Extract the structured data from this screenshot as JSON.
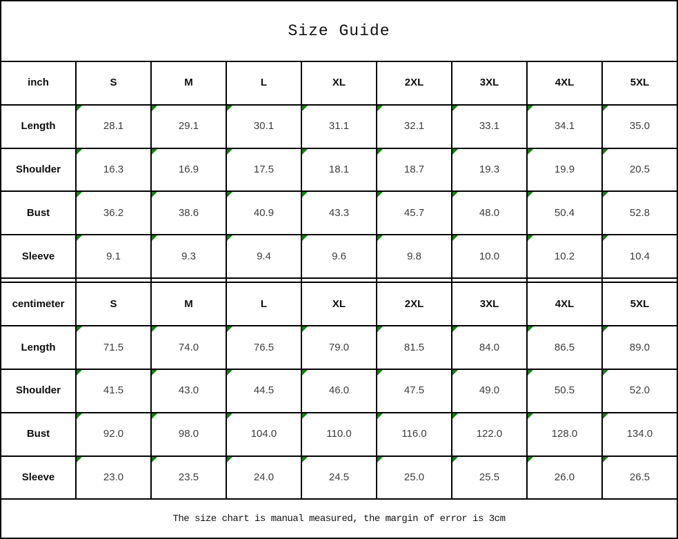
{
  "title": "Size Guide",
  "footer": "The size chart is manual measured, the margin of error is 3cm",
  "size_labels": [
    "S",
    "M",
    "L",
    "XL",
    "2XL",
    "3XL",
    "4XL",
    "5XL"
  ],
  "tables": [
    {
      "unit": "inch",
      "rows": [
        {
          "label": "Length",
          "values": [
            "28.1",
            "29.1",
            "30.1",
            "31.1",
            "32.1",
            "33.1",
            "34.1",
            "35.0"
          ]
        },
        {
          "label": "Shoulder",
          "values": [
            "16.3",
            "16.9",
            "17.5",
            "18.1",
            "18.7",
            "19.3",
            "19.9",
            "20.5"
          ]
        },
        {
          "label": "Bust",
          "values": [
            "36.2",
            "38.6",
            "40.9",
            "43.3",
            "45.7",
            "48.0",
            "50.4",
            "52.8"
          ]
        },
        {
          "label": "Sleeve",
          "values": [
            "9.1",
            "9.3",
            "9.4",
            "9.6",
            "9.8",
            "10.0",
            "10.2",
            "10.4"
          ]
        }
      ]
    },
    {
      "unit": "centimeter",
      "rows": [
        {
          "label": "Length",
          "values": [
            "71.5",
            "74.0",
            "76.5",
            "79.0",
            "81.5",
            "84.0",
            "86.5",
            "89.0"
          ]
        },
        {
          "label": "Shoulder",
          "values": [
            "41.5",
            "43.0",
            "44.5",
            "46.0",
            "47.5",
            "49.0",
            "50.5",
            "52.0"
          ]
        },
        {
          "label": "Bust",
          "values": [
            "92.0",
            "98.0",
            "104.0",
            "110.0",
            "116.0",
            "122.0",
            "128.0",
            "134.0"
          ]
        },
        {
          "label": "Sleeve",
          "values": [
            "23.0",
            "23.5",
            "24.0",
            "24.5",
            "25.0",
            "25.5",
            "26.0",
            "26.5"
          ]
        }
      ]
    }
  ],
  "colors": {
    "border": "#000000",
    "value_text": "#3c3c3c",
    "label_text": "#0d0d0d",
    "triangle_indicator": "#128212",
    "background": "#ffffff"
  }
}
